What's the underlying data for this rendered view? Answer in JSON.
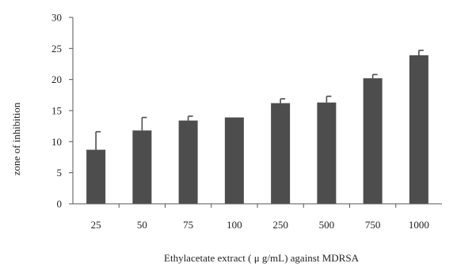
{
  "chart_data": {
    "type": "bar",
    "title": "",
    "xlabel": "Ethylacetate extract ( μ g/mL) against MDRSA",
    "ylabel": "zone of inhibition",
    "categories": [
      "25",
      "50",
      "75",
      "100",
      "250",
      "500",
      "750",
      "1000"
    ],
    "values": [
      8.7,
      11.8,
      13.4,
      13.9,
      16.2,
      16.3,
      20.2,
      23.9
    ],
    "errors": [
      2.9,
      2.1,
      0.7,
      0,
      0.7,
      1.0,
      0.6,
      0.8
    ],
    "ylim": [
      0,
      30
    ],
    "yticks": [
      0,
      5,
      10,
      15,
      20,
      25,
      30
    ],
    "grid": false,
    "colors": {
      "bar": "#4d4d4d",
      "axis": "#555555",
      "text": "#222222"
    }
  }
}
